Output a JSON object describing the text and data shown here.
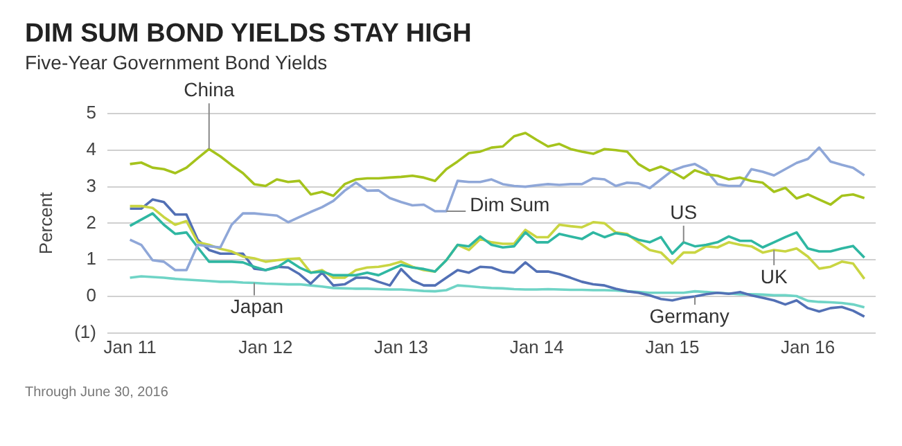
{
  "chart_data": {
    "type": "line",
    "title": "DIM SUM BOND YIELDS STAY HIGH",
    "subtitle": "Five-Year Government Bond Yields",
    "ylabel": "Percent",
    "annotations": [
      "Through June 30, 2016"
    ],
    "x": [
      "2011-01",
      "2011-02",
      "2011-03",
      "2011-04",
      "2011-05",
      "2011-06",
      "2011-07",
      "2011-08",
      "2011-09",
      "2011-10",
      "2011-11",
      "2011-12",
      "2012-01",
      "2012-02",
      "2012-03",
      "2012-04",
      "2012-05",
      "2012-06",
      "2012-07",
      "2012-08",
      "2012-09",
      "2012-10",
      "2012-11",
      "2012-12",
      "2013-01",
      "2013-02",
      "2013-03",
      "2013-04",
      "2013-05",
      "2013-06",
      "2013-07",
      "2013-08",
      "2013-09",
      "2013-10",
      "2013-11",
      "2013-12",
      "2014-01",
      "2014-02",
      "2014-03",
      "2014-04",
      "2014-05",
      "2014-06",
      "2014-07",
      "2014-08",
      "2014-09",
      "2014-10",
      "2014-11",
      "2014-12",
      "2015-01",
      "2015-02",
      "2015-03",
      "2015-04",
      "2015-05",
      "2015-06",
      "2015-07",
      "2015-08",
      "2015-09",
      "2015-10",
      "2015-11",
      "2015-12",
      "2016-01",
      "2016-02",
      "2016-03",
      "2016-04",
      "2016-05",
      "2016-06"
    ],
    "xlim": [
      "2010-11",
      "2016-07"
    ],
    "xticks": [
      {
        "value": "2011-01",
        "label": "Jan 11"
      },
      {
        "value": "2012-01",
        "label": "Jan 12"
      },
      {
        "value": "2013-01",
        "label": "Jan 13"
      },
      {
        "value": "2014-01",
        "label": "Jan 14"
      },
      {
        "value": "2015-01",
        "label": "Jan 15"
      },
      {
        "value": "2016-01",
        "label": "Jan 16"
      }
    ],
    "ylim": [
      -1,
      5
    ],
    "yticks": [
      {
        "value": -1,
        "label": "(1)"
      },
      0,
      1,
      2,
      3,
      4,
      5
    ],
    "grid": "y",
    "legend": false,
    "marker": "none",
    "series": [
      {
        "name": "China",
        "color": "#a5c31c",
        "values": [
          3.62,
          3.66,
          3.52,
          3.48,
          3.37,
          3.52,
          3.78,
          4.03,
          3.83,
          3.59,
          3.37,
          3.07,
          3.02,
          3.2,
          3.13,
          3.16,
          2.79,
          2.86,
          2.75,
          3.07,
          3.2,
          3.23,
          3.23,
          3.25,
          3.27,
          3.3,
          3.25,
          3.16,
          3.48,
          3.69,
          3.92,
          3.96,
          4.07,
          4.1,
          4.38,
          4.47,
          4.28,
          4.1,
          4.17,
          4.03,
          3.96,
          3.9,
          4.03,
          4.0,
          3.96,
          3.62,
          3.44,
          3.55,
          3.41,
          3.23,
          3.45,
          3.34,
          3.3,
          3.2,
          3.25,
          3.16,
          3.11,
          2.86,
          2.97,
          2.68,
          2.79,
          2.65,
          2.51,
          2.75,
          2.79,
          2.69
        ]
      },
      {
        "name": "Dim Sum",
        "color": "#8fa7d8",
        "values": [
          1.55,
          1.41,
          0.99,
          0.95,
          0.72,
          0.72,
          1.41,
          1.37,
          1.34,
          1.96,
          2.27,
          2.27,
          2.24,
          2.21,
          2.03,
          2.17,
          2.31,
          2.44,
          2.61,
          2.89,
          3.11,
          2.89,
          2.9,
          2.69,
          2.58,
          2.49,
          2.51,
          2.33,
          2.33,
          3.16,
          3.13,
          3.13,
          3.2,
          3.07,
          3.02,
          3.0,
          3.04,
          3.07,
          3.05,
          3.07,
          3.07,
          3.23,
          3.2,
          3.02,
          3.11,
          3.09,
          2.96,
          3.2,
          3.44,
          3.55,
          3.62,
          3.45,
          3.07,
          3.02,
          3.02,
          3.48,
          3.41,
          3.31,
          3.48,
          3.65,
          3.76,
          4.07,
          3.69,
          3.6,
          3.52,
          3.31
        ]
      },
      {
        "name": "US",
        "color": "#2fb7a2",
        "values": [
          1.93,
          2.1,
          2.27,
          1.96,
          1.71,
          1.75,
          1.34,
          0.95,
          0.95,
          0.95,
          0.93,
          0.81,
          0.72,
          0.79,
          0.99,
          0.79,
          0.65,
          0.68,
          0.58,
          0.58,
          0.58,
          0.65,
          0.58,
          0.72,
          0.86,
          0.79,
          0.75,
          0.68,
          0.99,
          1.41,
          1.37,
          1.64,
          1.41,
          1.34,
          1.37,
          1.75,
          1.48,
          1.48,
          1.71,
          1.64,
          1.57,
          1.75,
          1.62,
          1.73,
          1.68,
          1.55,
          1.48,
          1.62,
          1.17,
          1.48,
          1.37,
          1.41,
          1.48,
          1.64,
          1.52,
          1.52,
          1.34,
          1.48,
          1.62,
          1.75,
          1.31,
          1.23,
          1.23,
          1.31,
          1.38,
          1.06
        ]
      },
      {
        "name": "UK",
        "color": "#c9d542",
        "values": [
          2.47,
          2.47,
          2.42,
          2.17,
          1.96,
          2.06,
          1.48,
          1.41,
          1.3,
          1.23,
          1.09,
          1.04,
          0.95,
          0.99,
          1.02,
          1.04,
          0.65,
          0.72,
          0.51,
          0.51,
          0.72,
          0.79,
          0.81,
          0.86,
          0.95,
          0.81,
          0.72,
          0.68,
          0.99,
          1.41,
          1.27,
          1.57,
          1.48,
          1.44,
          1.44,
          1.82,
          1.62,
          1.62,
          1.96,
          1.92,
          1.89,
          2.03,
          2.0,
          1.75,
          1.71,
          1.48,
          1.27,
          1.2,
          0.9,
          1.2,
          1.2,
          1.37,
          1.34,
          1.48,
          1.41,
          1.37,
          1.2,
          1.27,
          1.23,
          1.31,
          1.09,
          0.76,
          0.81,
          0.95,
          0.9,
          0.48
        ]
      },
      {
        "name": "Germany",
        "color": "#5270b5",
        "values": [
          2.4,
          2.4,
          2.65,
          2.58,
          2.24,
          2.24,
          1.55,
          1.27,
          1.17,
          1.17,
          1.17,
          0.76,
          0.72,
          0.81,
          0.79,
          0.61,
          0.35,
          0.65,
          0.3,
          0.33,
          0.51,
          0.51,
          0.4,
          0.3,
          0.75,
          0.44,
          0.3,
          0.3,
          0.51,
          0.72,
          0.65,
          0.81,
          0.79,
          0.68,
          0.65,
          0.93,
          0.68,
          0.68,
          0.61,
          0.51,
          0.4,
          0.33,
          0.3,
          0.21,
          0.14,
          0.1,
          0.03,
          -0.07,
          -0.11,
          -0.04,
          0,
          0.06,
          0.1,
          0.07,
          0.12,
          0.03,
          -0.04,
          -0.11,
          -0.22,
          -0.11,
          -0.32,
          -0.41,
          -0.32,
          -0.29,
          -0.39,
          -0.55
        ]
      },
      {
        "name": "Japan",
        "color": "#6fd4c6",
        "values": [
          0.51,
          0.55,
          0.53,
          0.51,
          0.48,
          0.46,
          0.44,
          0.42,
          0.4,
          0.4,
          0.38,
          0.37,
          0.35,
          0.34,
          0.33,
          0.33,
          0.3,
          0.27,
          0.23,
          0.22,
          0.21,
          0.21,
          0.2,
          0.19,
          0.19,
          0.17,
          0.15,
          0.14,
          0.17,
          0.3,
          0.28,
          0.25,
          0.23,
          0.22,
          0.2,
          0.19,
          0.19,
          0.2,
          0.19,
          0.18,
          0.18,
          0.17,
          0.17,
          0.16,
          0.14,
          0.12,
          0.1,
          0.1,
          0.1,
          0.1,
          0.14,
          0.12,
          0.1,
          0.08,
          0.06,
          0.06,
          0.05,
          0.03,
          0.03,
          0.01,
          -0.12,
          -0.15,
          -0.16,
          -0.18,
          -0.22,
          -0.3
        ]
      }
    ]
  }
}
